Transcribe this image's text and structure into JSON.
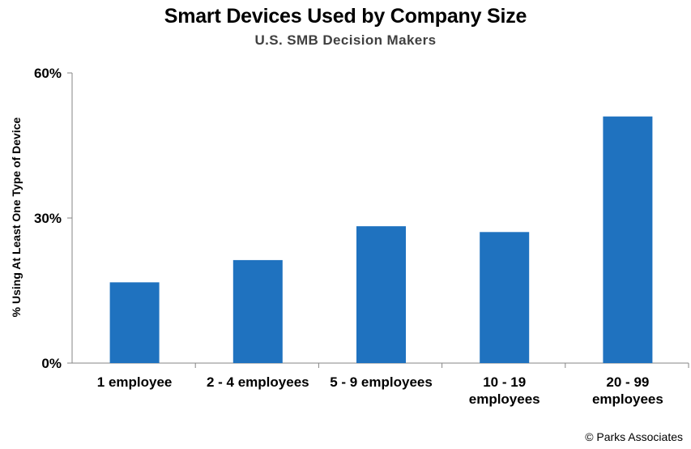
{
  "header": {
    "title": "Smart Devices Used by Company Size",
    "subtitle": "U.S. SMB Decision Makers"
  },
  "footer": {
    "copyright": "© Parks Associates"
  },
  "chart_data": {
    "type": "bar",
    "title": "Smart Devices Used by Company Size",
    "subtitle": "U.S. SMB Decision Makers",
    "xlabel": "",
    "ylabel": "% Using At Least One Type of Device",
    "categories": [
      [
        "1 employee"
      ],
      [
        "2 - 4 employees"
      ],
      [
        "5 - 9 employees"
      ],
      [
        "10 - 19",
        "employees"
      ],
      [
        "20 - 99",
        "employees"
      ]
    ],
    "values": [
      16.7,
      21.3,
      28.3,
      27.1,
      51.0
    ],
    "ylim": [
      0,
      60
    ],
    "yticks": [
      0,
      30,
      60
    ],
    "ytick_labels": [
      "0%",
      "30%",
      "60%"
    ],
    "grid": false,
    "legend": "none",
    "bar_color": "#1F72BF",
    "axis_color": "#868686"
  }
}
